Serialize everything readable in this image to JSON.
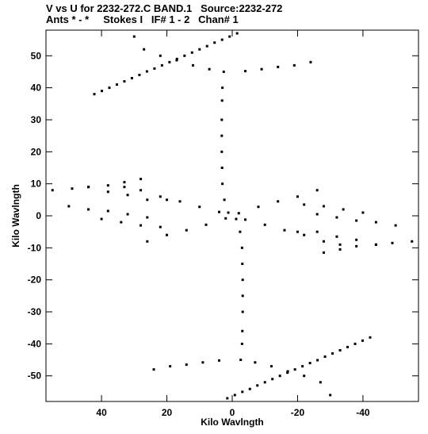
{
  "header": {
    "line1": "V vs U for 2232-272.C BAND.1   Source:2232-272",
    "line2": "Ants * - *     Stokes I   IF# 1 - 2   Chan# 1"
  },
  "chart_data": {
    "type": "scatter",
    "title": "V vs U for 2232-272.C BAND.1   Source:2232-272",
    "subtitle": "Ants * - *     Stokes I   IF# 1 - 2   Chan# 1",
    "xlabel": "Kilo Wavlngth",
    "ylabel": "Kilo Wavlngth",
    "xlim": [
      57,
      -57
    ],
    "ylim": [
      -58,
      58
    ],
    "x_inverted": true,
    "xticks": [
      40,
      20,
      0,
      -20,
      -40
    ],
    "xtick_labels": [
      "40",
      "20",
      "0",
      "-20",
      "-40"
    ],
    "yticks": [
      50,
      40,
      30,
      20,
      10,
      0,
      -10,
      -20,
      -30,
      -40,
      -50
    ],
    "ytick_labels": [
      "50",
      "40",
      "30",
      "20",
      "10",
      "0",
      "-10",
      "-20",
      "-30",
      "-40",
      "-50"
    ],
    "grid": false,
    "marker_color": "#000000",
    "description_of_pattern": "uv-coverage of 6 tracks forming a symmetric star: vertical spine near u=0, two crossing diagonal bands, and chevron-shaped rows spanning |v| up to ~57",
    "series": [
      {
        "points": [
          [
            -1.5,
            57.0
          ],
          [
            0.8,
            56.0
          ],
          [
            3.1,
            55.0
          ],
          [
            5.4,
            54.1
          ],
          [
            7.7,
            53.0
          ],
          [
            10.0,
            52.0
          ],
          [
            12.3,
            51.0
          ],
          [
            14.6,
            50.0
          ],
          [
            16.9,
            49.0
          ],
          [
            19.2,
            48.0
          ],
          [
            21.5,
            47.0
          ],
          [
            23.8,
            46.0
          ],
          [
            26.1,
            45.1
          ],
          [
            28.4,
            44.0
          ],
          [
            30.7,
            43.0
          ],
          [
            33.0,
            42.0
          ],
          [
            35.3,
            41.0
          ],
          [
            37.6,
            40.0
          ],
          [
            39.9,
            39.0
          ],
          [
            42.2,
            38.0
          ],
          [
            1.5,
            -57.0
          ],
          [
            -0.8,
            -56.0
          ],
          [
            -3.1,
            -55.0
          ],
          [
            -5.4,
            -54.1
          ],
          [
            -7.7,
            -53.0
          ],
          [
            -10.0,
            -52.0
          ],
          [
            -12.3,
            -51.0
          ],
          [
            -14.6,
            -50.0
          ],
          [
            -16.9,
            -49.0
          ],
          [
            -19.2,
            -48.0
          ],
          [
            -21.5,
            -47.0
          ],
          [
            -23.8,
            -46.0
          ],
          [
            -26.1,
            -45.1
          ],
          [
            -28.4,
            -44.0
          ],
          [
            -30.7,
            -43.0
          ],
          [
            -33.0,
            -42.0
          ],
          [
            -35.3,
            -41.0
          ],
          [
            -37.6,
            -40.0
          ],
          [
            -39.9,
            -39.0
          ],
          [
            -42.2,
            -38.0
          ],
          [
            2.6,
            45.0
          ],
          [
            3.0,
            40.0
          ],
          [
            3.1,
            36.0
          ],
          [
            3.2,
            30.0
          ],
          [
            3.2,
            25.0
          ],
          [
            3.2,
            20.0
          ],
          [
            3.1,
            15.0
          ],
          [
            3.0,
            10.0
          ],
          [
            2.4,
            5.0
          ],
          [
            1.2,
            1.0
          ],
          [
            -2.6,
            -45.0
          ],
          [
            -3.0,
            -40.0
          ],
          [
            -3.1,
            -36.0
          ],
          [
            -3.2,
            -30.0
          ],
          [
            -3.2,
            -25.0
          ],
          [
            -3.2,
            -20.0
          ],
          [
            -3.1,
            -15.0
          ],
          [
            -3.0,
            -10.0
          ],
          [
            -2.4,
            -5.0
          ],
          [
            -1.2,
            -1.0
          ],
          [
            -24.0,
            48.0
          ],
          [
            -19.0,
            47.0
          ],
          [
            -14.0,
            46.5
          ],
          [
            -9.0,
            45.8
          ],
          [
            -4.0,
            45.2
          ],
          [
            7.0,
            45.8
          ],
          [
            12.0,
            47.0
          ],
          [
            17.0,
            48.6
          ],
          [
            22.0,
            50.0
          ],
          [
            27.0,
            52.0
          ],
          [
            30.0,
            56.0
          ],
          [
            24.0,
            -48.0
          ],
          [
            19.0,
            -47.0
          ],
          [
            14.0,
            -46.5
          ],
          [
            9.0,
            -45.8
          ],
          [
            4.0,
            -45.2
          ],
          [
            -7.0,
            -45.8
          ],
          [
            -12.0,
            -47.0
          ],
          [
            -17.0,
            -48.6
          ],
          [
            -22.0,
            -50.0
          ],
          [
            -27.0,
            -52.0
          ],
          [
            -30.0,
            -56.0
          ],
          [
            -26.0,
            8.0
          ],
          [
            -20.0,
            6.0
          ],
          [
            -14.0,
            4.5
          ],
          [
            -8.0,
            2.8
          ],
          [
            -2.0,
            0.8
          ],
          [
            2.0,
            -0.8
          ],
          [
            8.0,
            -2.8
          ],
          [
            14.0,
            -4.5
          ],
          [
            20.0,
            -6.0
          ],
          [
            26.0,
            -8.0
          ],
          [
            33.0,
            9.0
          ],
          [
            28.0,
            8.0
          ],
          [
            22.0,
            6.0
          ],
          [
            16.0,
            4.5
          ],
          [
            10.0,
            2.8
          ],
          [
            4.0,
            1.2
          ],
          [
            -4.0,
            -1.2
          ],
          [
            -10.0,
            -2.8
          ],
          [
            -16.0,
            -4.5
          ],
          [
            -22.0,
            -6.0
          ],
          [
            -28.0,
            -8.0
          ],
          [
            -33.0,
            -9.0
          ],
          [
            55.0,
            8.0
          ],
          [
            49.0,
            8.5
          ],
          [
            44.0,
            9.0
          ],
          [
            38.0,
            9.5
          ],
          [
            33.0,
            10.5
          ],
          [
            28.0,
            11.5
          ],
          [
            -55.0,
            -8.0
          ],
          [
            -49.0,
            -8.5
          ],
          [
            -44.0,
            -9.0
          ],
          [
            -38.0,
            -9.5
          ],
          [
            -33.0,
            -10.5
          ],
          [
            -28.0,
            -11.5
          ],
          [
            50.0,
            3.0
          ],
          [
            44.0,
            2.0
          ],
          [
            38.0,
            1.5
          ],
          [
            32.0,
            0.5
          ],
          [
            26.0,
            -0.5
          ],
          [
            -50.0,
            -3.0
          ],
          [
            -44.0,
            -2.0
          ],
          [
            -38.0,
            -1.5
          ],
          [
            -32.0,
            -0.5
          ],
          [
            -26.0,
            0.5
          ],
          [
            40.0,
            -1.0
          ],
          [
            34.0,
            -2.0
          ],
          [
            28.0,
            -3.0
          ],
          [
            22.0,
            -3.5
          ],
          [
            -40.0,
            1.0
          ],
          [
            -34.0,
            2.0
          ],
          [
            -28.0,
            3.0
          ],
          [
            -22.0,
            3.5
          ],
          [
            20.0,
            5.0
          ],
          [
            -20.0,
            -5.0
          ],
          [
            -26.0,
            -5.0
          ],
          [
            -32.0,
            -6.5
          ],
          [
            -38.0,
            -7.5
          ],
          [
            -44.0,
            -9.0
          ],
          [
            26.0,
            5.0
          ],
          [
            32.0,
            6.5
          ],
          [
            38.0,
            7.5
          ],
          [
            44.0,
            9.0
          ]
        ]
      }
    ]
  }
}
